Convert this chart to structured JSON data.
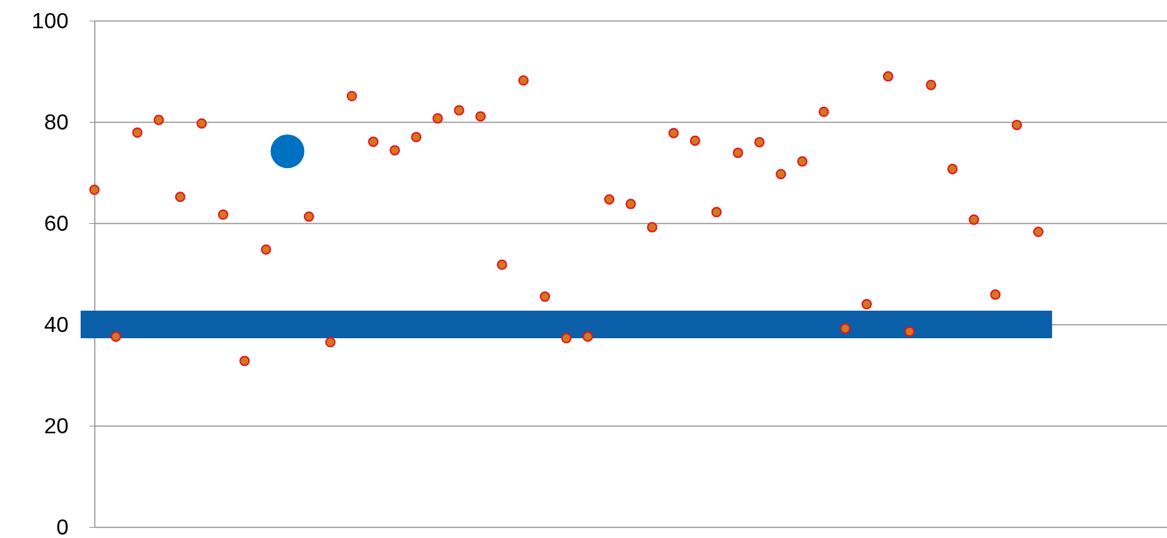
{
  "chart_data": {
    "type": "scatter",
    "categories": [
      null,
      null,
      null,
      null,
      null,
      null,
      null,
      null,
      null,
      null,
      null,
      null,
      null,
      null,
      null,
      null,
      null,
      null,
      null,
      null,
      null,
      null,
      null,
      null,
      null,
      null,
      null,
      null,
      null,
      null,
      null,
      null,
      null,
      null,
      null,
      null,
      null,
      null,
      null,
      null,
      null,
      null,
      null,
      null,
      null,
      null,
      null,
      null,
      null,
      null,
      null
    ],
    "series": [
      {
        "type": "line",
        "color": "#0b5ea8",
        "values": [
          40,
          40,
          40,
          40,
          40,
          40,
          40,
          40,
          40,
          40,
          40,
          40,
          40,
          40,
          40,
          40,
          40,
          40,
          40,
          40,
          40,
          40,
          40,
          40,
          40,
          40,
          40,
          40,
          40,
          40,
          40,
          40,
          40,
          40,
          40,
          40,
          40,
          40,
          40,
          40,
          40,
          40,
          40,
          40,
          40,
          null,
          null,
          null,
          null,
          null,
          null
        ]
      },
      {
        "color": "#d2781e",
        "marker": "circle",
        "values": [
          66.6,
          37.6,
          77.9,
          80.4,
          65.2,
          79.7,
          61.7,
          32.8,
          54.8,
          null,
          61.3,
          36.5,
          85.1,
          76.1,
          74.4,
          77.0,
          80.7,
          82.3,
          81.1,
          51.8,
          88.2,
          45.5,
          37.3,
          37.6,
          64.7,
          63.8,
          59.2,
          77.8,
          76.3,
          62.2,
          73.9,
          76.0,
          69.7,
          72.2,
          82.0,
          39.2,
          44.0,
          89.0,
          38.6,
          87.3,
          70.7,
          60.7,
          45.9,
          79.4,
          58.3,
          null,
          null,
          null,
          null,
          null,
          null
        ]
      },
      {
        "type": "bubble",
        "color": "#0070c0",
        "marker": "circle",
        "values": [
          null,
          null,
          null,
          null,
          null,
          null,
          null,
          null,
          null,
          74.2,
          null,
          null,
          null,
          null,
          null,
          null,
          null,
          null,
          null,
          null,
          null,
          null,
          null,
          null,
          null,
          null,
          null,
          null,
          null,
          null,
          null,
          null,
          null,
          null,
          null,
          null,
          null,
          null,
          null,
          null,
          null,
          null,
          null,
          null,
          null,
          null,
          null,
          null,
          null,
          null,
          null
        ]
      }
    ],
    "ylim": [
      0,
      100
    ],
    "yticks": [
      0,
      20,
      40,
      60,
      80,
      100
    ],
    "grid": "y",
    "tick_labels": "y"
  }
}
